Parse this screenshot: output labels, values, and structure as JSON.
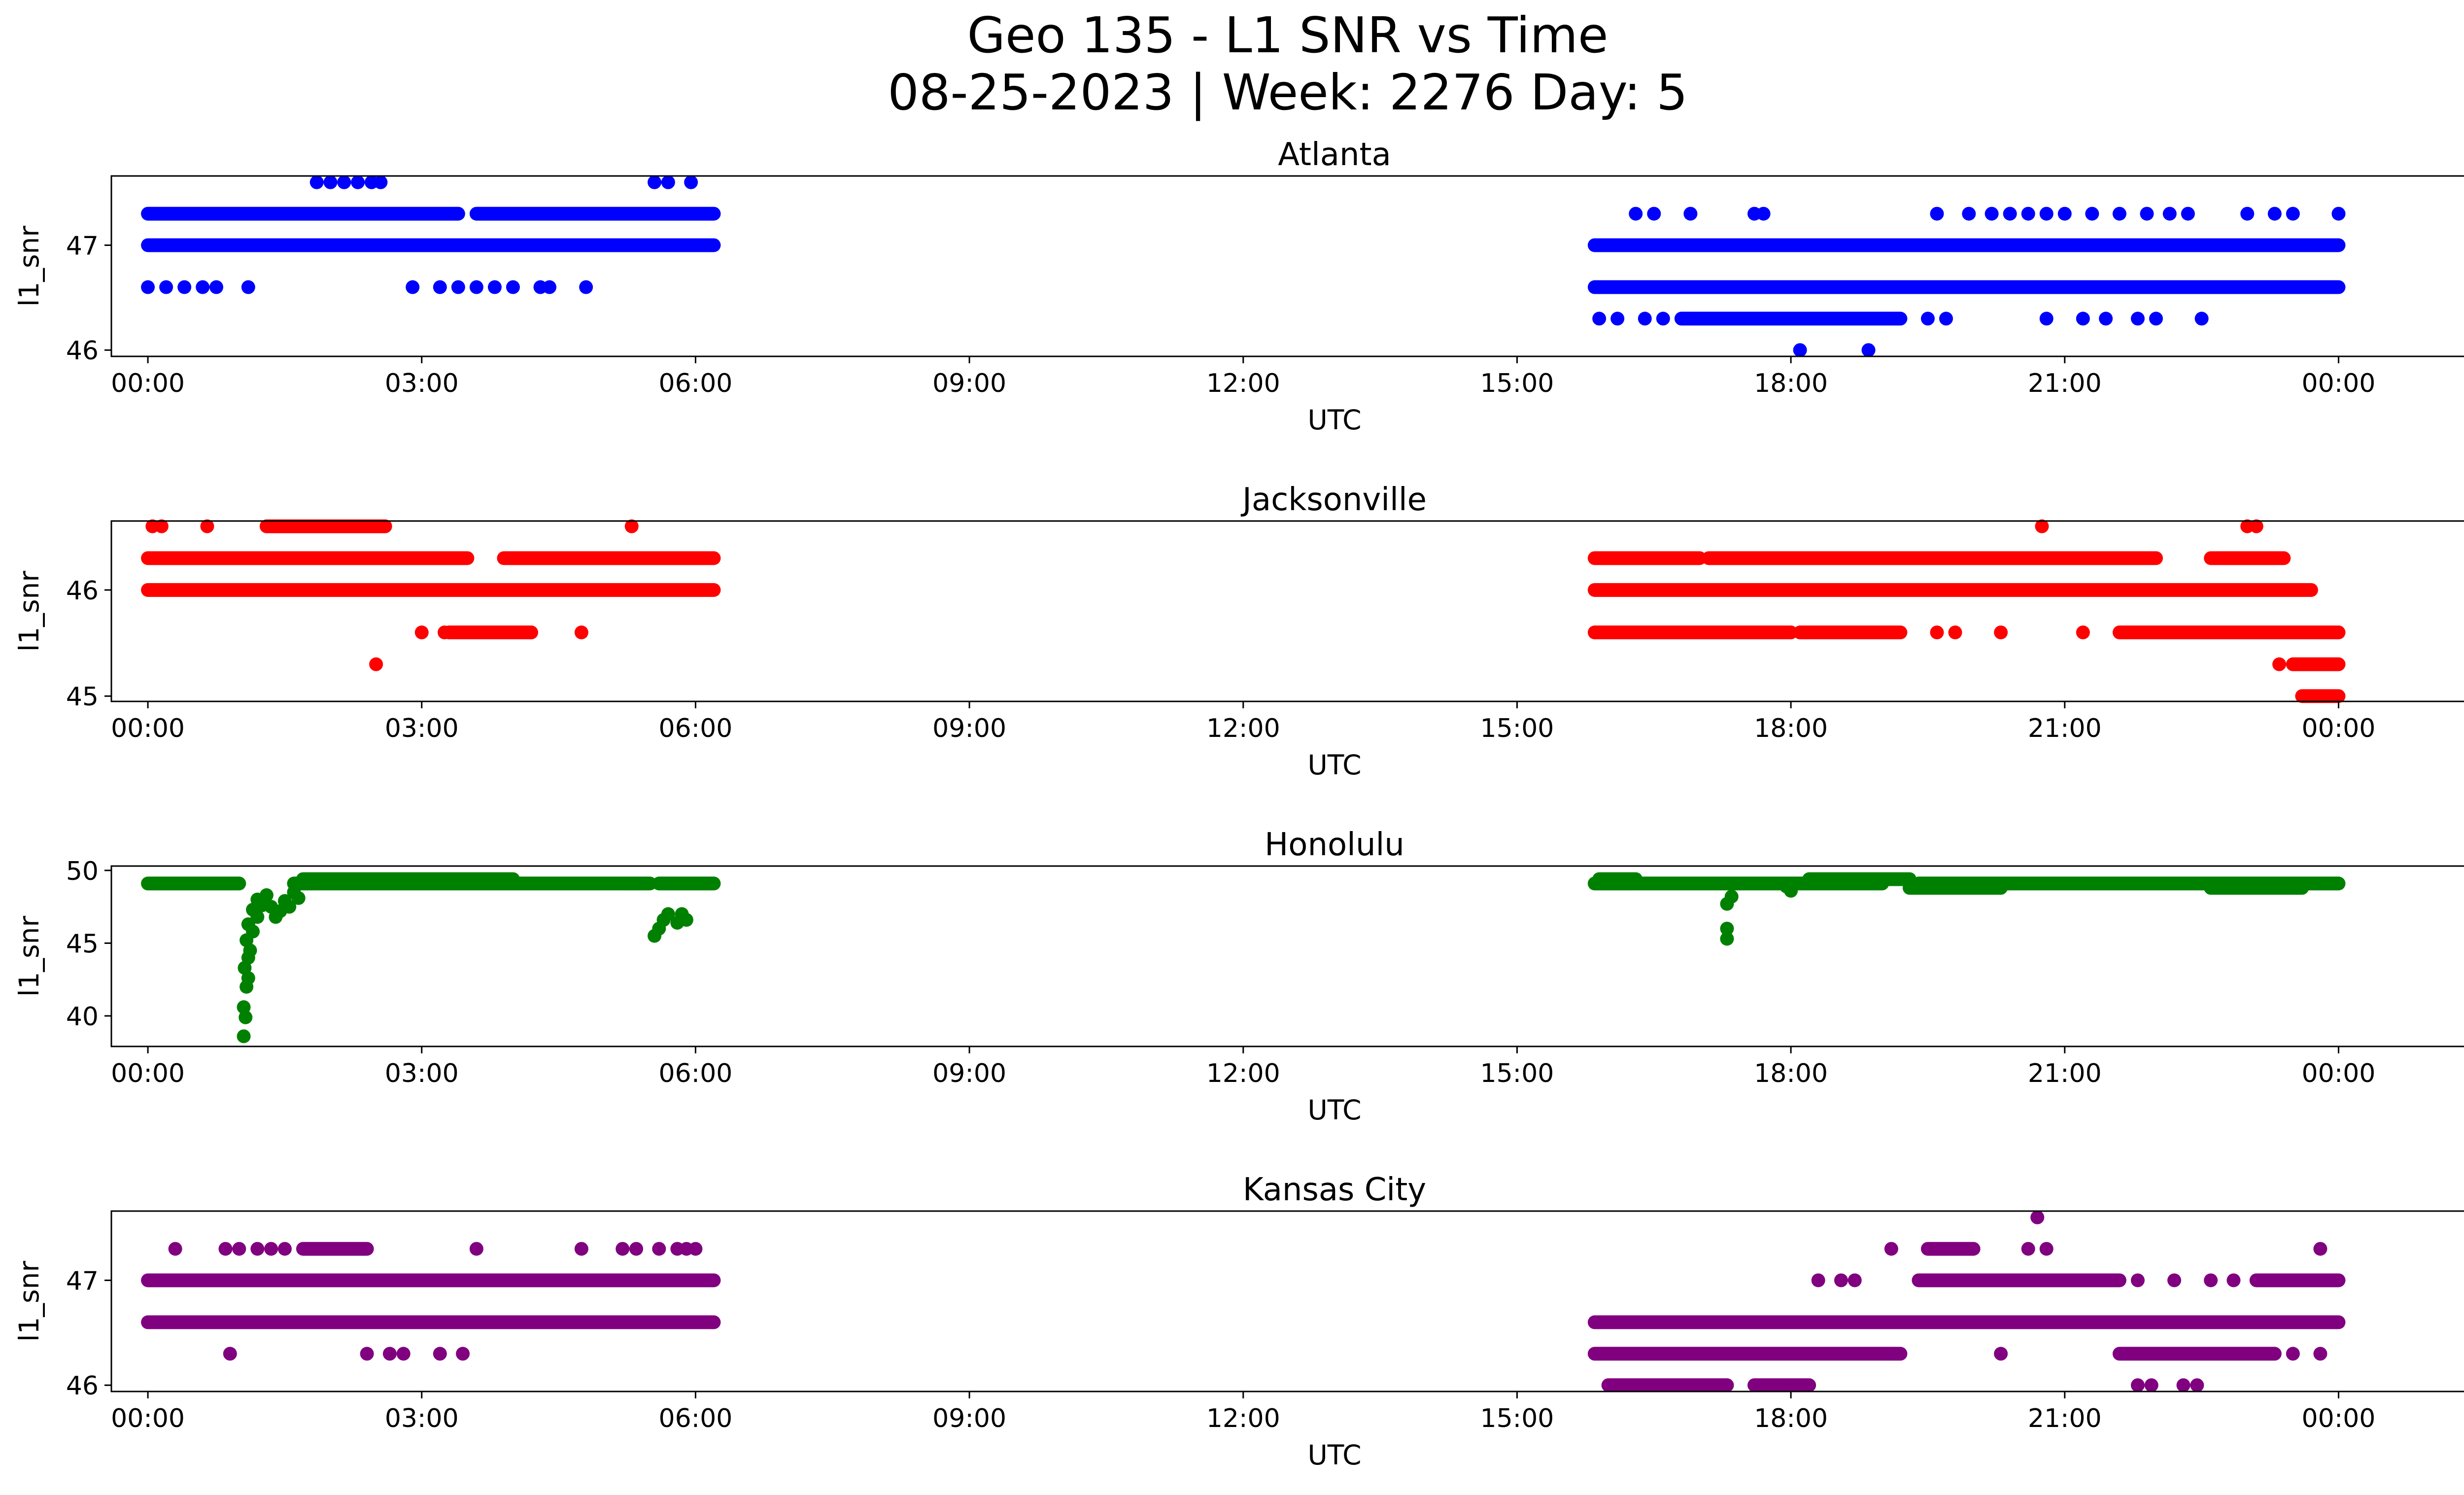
{
  "figure": {
    "title_line1": "Geo 135 - L1 SNR vs Time",
    "title_line2": "08-25-2023 | Week: 2276 Day: 5"
  },
  "chart_data": [
    {
      "type": "scatter",
      "title": "Atlanta",
      "xlabel": "UTC",
      "ylabel": "l1_snr",
      "color": "#0000ff",
      "xlim": [
        -0.4,
        26.4
      ],
      "ylim": [
        45.94,
        47.66
      ],
      "xticks": [
        0,
        3,
        6,
        9,
        12,
        15,
        18,
        21,
        24
      ],
      "xtick_labels": [
        "00:00",
        "03:00",
        "06:00",
        "09:00",
        "12:00",
        "15:00",
        "18:00",
        "21:00",
        "00:00"
      ],
      "yticks": [
        46,
        47
      ],
      "ytick_labels": [
        "46",
        "47"
      ],
      "bands": [
        {
          "y": 47.0,
          "x": [
            [
              0.0,
              6.2
            ],
            [
              15.85,
              24.0
            ]
          ]
        },
        {
          "y": 47.3,
          "x": [
            [
              0.0,
              3.4
            ],
            [
              3.6,
              6.2
            ]
          ]
        },
        {
          "y": 46.6,
          "x": [
            [
              15.85,
              24.0
            ]
          ]
        },
        {
          "y": 46.3,
          "x": [
            [
              16.8,
              19.2
            ]
          ]
        }
      ],
      "points": [
        [
          0.0,
          46.6
        ],
        [
          0.2,
          46.6
        ],
        [
          0.4,
          46.6
        ],
        [
          0.6,
          46.6
        ],
        [
          0.75,
          46.6
        ],
        [
          1.1,
          46.6
        ],
        [
          2.9,
          46.6
        ],
        [
          3.2,
          46.6
        ],
        [
          3.4,
          46.6
        ],
        [
          3.6,
          46.6
        ],
        [
          3.8,
          46.6
        ],
        [
          4.0,
          46.6
        ],
        [
          4.3,
          46.6
        ],
        [
          4.4,
          46.6
        ],
        [
          4.8,
          46.6
        ],
        [
          1.85,
          47.6
        ],
        [
          2.0,
          47.6
        ],
        [
          2.15,
          47.6
        ],
        [
          2.3,
          47.6
        ],
        [
          2.45,
          47.6
        ],
        [
          2.55,
          47.6
        ],
        [
          5.55,
          47.6
        ],
        [
          5.7,
          47.6
        ],
        [
          5.95,
          47.6
        ],
        [
          16.3,
          47.3
        ],
        [
          16.5,
          47.3
        ],
        [
          16.9,
          47.3
        ],
        [
          17.6,
          47.3
        ],
        [
          17.7,
          47.3
        ],
        [
          19.6,
          47.3
        ],
        [
          19.95,
          47.3
        ],
        [
          20.2,
          47.3
        ],
        [
          20.4,
          47.3
        ],
        [
          20.6,
          47.3
        ],
        [
          20.8,
          47.3
        ],
        [
          21.0,
          47.3
        ],
        [
          21.3,
          47.3
        ],
        [
          21.6,
          47.3
        ],
        [
          21.9,
          47.3
        ],
        [
          22.15,
          47.3
        ],
        [
          22.35,
          47.3
        ],
        [
          23.0,
          47.3
        ],
        [
          23.3,
          47.3
        ],
        [
          23.5,
          47.3
        ],
        [
          24.0,
          47.3
        ],
        [
          15.9,
          46.3
        ],
        [
          16.1,
          46.3
        ],
        [
          16.4,
          46.3
        ],
        [
          16.6,
          46.3
        ],
        [
          19.5,
          46.3
        ],
        [
          19.7,
          46.3
        ],
        [
          20.8,
          46.3
        ],
        [
          21.2,
          46.3
        ],
        [
          21.45,
          46.3
        ],
        [
          21.8,
          46.3
        ],
        [
          22.0,
          46.3
        ],
        [
          22.5,
          46.3
        ],
        [
          18.1,
          46.0
        ],
        [
          18.85,
          46.0
        ]
      ]
    },
    {
      "type": "scatter",
      "title": "Jacksonville",
      "xlabel": "UTC",
      "ylabel": "l1_snr",
      "color": "#ff0000",
      "xlim": [
        -0.4,
        26.4
      ],
      "ylim": [
        44.95,
        46.65
      ],
      "xticks": [
        0,
        3,
        6,
        9,
        12,
        15,
        18,
        21,
        24
      ],
      "xtick_labels": [
        "00:00",
        "03:00",
        "06:00",
        "09:00",
        "12:00",
        "15:00",
        "18:00",
        "21:00",
        "00:00"
      ],
      "yticks": [
        45,
        46
      ],
      "ytick_labels": [
        "45",
        "46"
      ],
      "bands": [
        {
          "y": 46.3,
          "x": [
            [
              0.0,
              3.5
            ],
            [
              3.9,
              6.2
            ],
            [
              15.85,
              17.0
            ],
            [
              17.1,
              22.0
            ],
            [
              22.6,
              23.4
            ]
          ]
        },
        {
          "y": 46.0,
          "x": [
            [
              0.0,
              6.2
            ],
            [
              15.85,
              23.7
            ]
          ]
        },
        {
          "y": 45.6,
          "x": [
            [
              3.3,
              4.2
            ],
            [
              15.85,
              18.0
            ],
            [
              18.1,
              19.2
            ],
            [
              21.6,
              24.0
            ]
          ]
        },
        {
          "y": 46.6,
          "x": [
            [
              1.3,
              2.6
            ]
          ]
        },
        {
          "y": 45.3,
          "x": [
            [
              23.5,
              24.0
            ]
          ]
        },
        {
          "y": 45.0,
          "x": [
            [
              23.6,
              24.0
            ]
          ]
        }
      ],
      "points": [
        [
          0.05,
          46.6
        ],
        [
          0.15,
          46.6
        ],
        [
          0.65,
          46.6
        ],
        [
          5.3,
          46.6
        ],
        [
          20.75,
          46.6
        ],
        [
          23.0,
          46.6
        ],
        [
          23.1,
          46.6
        ],
        [
          3.0,
          45.6
        ],
        [
          3.25,
          45.6
        ],
        [
          4.75,
          45.6
        ],
        [
          19.6,
          45.6
        ],
        [
          19.8,
          45.6
        ],
        [
          20.3,
          45.6
        ],
        [
          21.2,
          45.6
        ],
        [
          2.5,
          45.3
        ],
        [
          23.35,
          45.3
        ]
      ]
    },
    {
      "type": "scatter",
      "title": "Honolulu",
      "xlabel": "UTC",
      "ylabel": "l1_snr",
      "color": "#008000",
      "xlim": [
        -0.4,
        26.4
      ],
      "ylim": [
        37.9,
        50.3
      ],
      "xticks": [
        0,
        3,
        6,
        9,
        12,
        15,
        18,
        21,
        24
      ],
      "xtick_labels": [
        "00:00",
        "03:00",
        "06:00",
        "09:00",
        "12:00",
        "15:00",
        "18:00",
        "21:00",
        "00:00"
      ],
      "yticks": [
        40,
        45,
        50
      ],
      "ytick_labels": [
        "40",
        "45",
        "50"
      ],
      "bands": [
        {
          "y": 49.1,
          "x": [
            [
              0.0,
              1.0
            ],
            [
              1.6,
              5.5
            ],
            [
              5.6,
              6.2
            ],
            [
              15.85,
              19.0
            ],
            [
              19.4,
              24.0
            ]
          ]
        },
        {
          "y": 49.4,
          "x": [
            [
              1.7,
              4.0
            ],
            [
              18.2,
              19.3
            ],
            [
              15.9,
              16.3
            ]
          ]
        },
        {
          "y": 48.8,
          "x": [
            [
              19.3,
              20.3
            ],
            [
              22.6,
              23.6
            ]
          ]
        }
      ],
      "points": [
        [
          1.05,
          38.6
        ],
        [
          1.07,
          39.9
        ],
        [
          1.05,
          40.6
        ],
        [
          1.08,
          42.0
        ],
        [
          1.1,
          42.6
        ],
        [
          1.06,
          43.3
        ],
        [
          1.1,
          44.0
        ],
        [
          1.12,
          44.5
        ],
        [
          1.08,
          45.2
        ],
        [
          1.15,
          45.8
        ],
        [
          1.1,
          46.3
        ],
        [
          1.2,
          46.8
        ],
        [
          1.15,
          47.3
        ],
        [
          1.25,
          47.6
        ],
        [
          1.2,
          48.0
        ],
        [
          1.3,
          48.3
        ],
        [
          1.35,
          47.5
        ],
        [
          1.4,
          46.8
        ],
        [
          1.45,
          47.2
        ],
        [
          1.5,
          47.9
        ],
        [
          1.55,
          47.5
        ],
        [
          1.6,
          48.5
        ],
        [
          1.65,
          48.1
        ],
        [
          5.55,
          45.5
        ],
        [
          5.6,
          46.0
        ],
        [
          5.65,
          46.6
        ],
        [
          5.7,
          47.0
        ],
        [
          5.8,
          46.4
        ],
        [
          5.85,
          47.0
        ],
        [
          5.9,
          46.6
        ],
        [
          17.3,
          45.3
        ],
        [
          17.3,
          46.0
        ],
        [
          17.3,
          47.7
        ],
        [
          17.35,
          48.2
        ],
        [
          18.0,
          48.6
        ],
        [
          17.95,
          48.9
        ]
      ]
    },
    {
      "type": "scatter",
      "title": "Kansas City",
      "xlabel": "UTC",
      "ylabel": "l1_snr",
      "color": "#800080",
      "xlim": [
        -0.4,
        26.4
      ],
      "ylim": [
        45.94,
        47.66
      ],
      "xticks": [
        0,
        3,
        6,
        9,
        12,
        15,
        18,
        21,
        24
      ],
      "xtick_labels": [
        "00:00",
        "03:00",
        "06:00",
        "09:00",
        "12:00",
        "15:00",
        "18:00",
        "21:00",
        "00:00"
      ],
      "yticks": [
        46,
        47
      ],
      "ytick_labels": [
        "46",
        "47"
      ],
      "bands": [
        {
          "y": 47.0,
          "x": [
            [
              0.0,
              6.2
            ],
            [
              19.4,
              21.6
            ],
            [
              23.1,
              24.0
            ]
          ]
        },
        {
          "y": 46.6,
          "x": [
            [
              0.0,
              6.2
            ],
            [
              15.85,
              24.0
            ]
          ]
        },
        {
          "y": 46.3,
          "x": [
            [
              15.85,
              19.2
            ],
            [
              21.6,
              23.3
            ]
          ]
        },
        {
          "y": 46.0,
          "x": [
            [
              16.0,
              17.3
            ],
            [
              17.6,
              18.2
            ]
          ]
        },
        {
          "y": 47.3,
          "x": [
            [
              1.7,
              2.4
            ],
            [
              19.5,
              20.0
            ]
          ]
        }
      ],
      "points": [
        [
          0.3,
          47.3
        ],
        [
          0.85,
          47.3
        ],
        [
          1.0,
          47.3
        ],
        [
          1.2,
          47.3
        ],
        [
          1.35,
          47.3
        ],
        [
          1.5,
          47.3
        ],
        [
          3.6,
          47.3
        ],
        [
          4.75,
          47.3
        ],
        [
          5.2,
          47.3
        ],
        [
          5.35,
          47.3
        ],
        [
          5.6,
          47.3
        ],
        [
          5.8,
          47.3
        ],
        [
          5.9,
          47.3
        ],
        [
          6.0,
          47.3
        ],
        [
          19.1,
          47.3
        ],
        [
          20.6,
          47.3
        ],
        [
          20.8,
          47.3
        ],
        [
          23.8,
          47.3
        ],
        [
          20.7,
          47.6
        ],
        [
          18.3,
          47.0
        ],
        [
          18.55,
          47.0
        ],
        [
          18.7,
          47.0
        ],
        [
          21.8,
          47.0
        ],
        [
          22.2,
          47.0
        ],
        [
          22.6,
          47.0
        ],
        [
          22.85,
          47.0
        ],
        [
          0.9,
          46.3
        ],
        [
          2.4,
          46.3
        ],
        [
          2.65,
          46.3
        ],
        [
          2.8,
          46.3
        ],
        [
          3.2,
          46.3
        ],
        [
          3.45,
          46.3
        ],
        [
          20.3,
          46.3
        ],
        [
          23.5,
          46.3
        ],
        [
          23.8,
          46.3
        ],
        [
          21.8,
          46.0
        ],
        [
          21.95,
          46.0
        ],
        [
          22.3,
          46.0
        ],
        [
          22.45,
          46.0
        ]
      ]
    }
  ]
}
